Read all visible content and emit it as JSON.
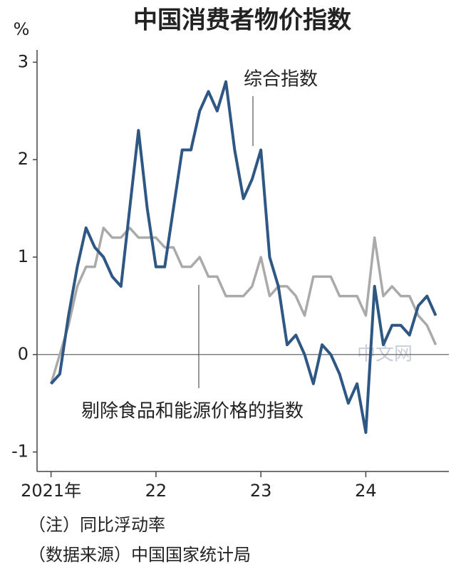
{
  "chart_data": {
    "type": "line",
    "title": "中国消费者物价指数",
    "y_unit": "%",
    "x": [
      0,
      1,
      2,
      3,
      4,
      5,
      6,
      7,
      8,
      9,
      10,
      11,
      12,
      13,
      14,
      15,
      16,
      17,
      18,
      19,
      20,
      21,
      22,
      23,
      24,
      25,
      26,
      27,
      28,
      29,
      30,
      31,
      32,
      33,
      34,
      35,
      36,
      37,
      38,
      39,
      40,
      41,
      42,
      43,
      44
    ],
    "xlim": [
      -1.6,
      45.5
    ],
    "xticks": [
      {
        "value": 0,
        "label": "2021年"
      },
      {
        "value": 12,
        "label": "22"
      },
      {
        "value": 24,
        "label": "23"
      },
      {
        "value": 36,
        "label": "24"
      }
    ],
    "ylim": [
      -1.2,
      3.2
    ],
    "yticks": [
      -1,
      0,
      1,
      2,
      3
    ],
    "series": [
      {
        "name": "剔除食品和能源价格的指数",
        "color": "#aaaaaa",
        "values": [
          -0.3,
          0.0,
          0.3,
          0.7,
          0.9,
          0.9,
          1.3,
          1.2,
          1.2,
          1.3,
          1.2,
          1.2,
          1.2,
          1.1,
          1.1,
          0.9,
          0.9,
          1.0,
          0.8,
          0.8,
          0.6,
          0.6,
          0.6,
          0.7,
          1.0,
          0.6,
          0.7,
          0.7,
          0.6,
          0.4,
          0.8,
          0.8,
          0.8,
          0.6,
          0.6,
          0.6,
          0.4,
          1.2,
          0.6,
          0.7,
          0.6,
          0.6,
          0.4,
          0.3,
          0.1
        ]
      },
      {
        "name": "综合指数",
        "color": "#2e5784",
        "values": [
          -0.3,
          -0.2,
          0.4,
          0.9,
          1.3,
          1.1,
          1.0,
          0.8,
          0.7,
          1.5,
          2.3,
          1.5,
          0.9,
          0.9,
          1.5,
          2.1,
          2.1,
          2.5,
          2.7,
          2.5,
          2.8,
          2.1,
          1.6,
          1.8,
          2.1,
          1.0,
          0.7,
          0.1,
          0.2,
          0.0,
          -0.3,
          0.1,
          0.0,
          -0.2,
          -0.5,
          -0.3,
          -0.8,
          0.7,
          0.1,
          0.3,
          0.3,
          0.2,
          0.5,
          0.6,
          0.4
        ]
      }
    ],
    "watermark": "中文网",
    "notes": [
      "（注）同比浮动率",
      "（数据来源）中国国家统计局"
    ]
  }
}
